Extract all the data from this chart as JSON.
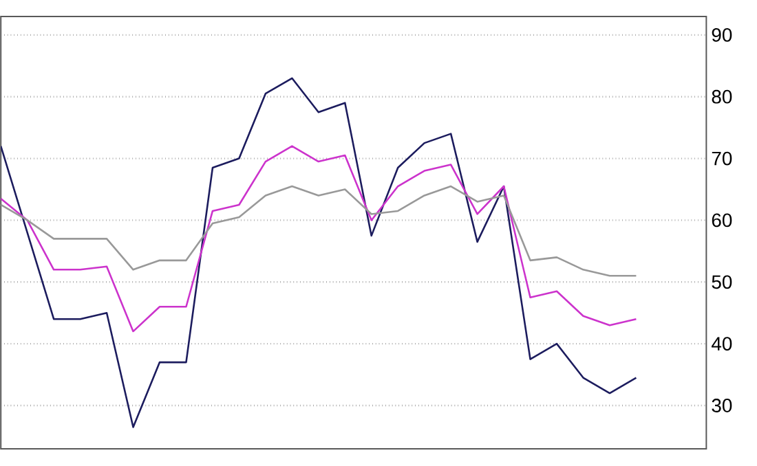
{
  "chart_data": {
    "type": "line",
    "categories": [
      null,
      null,
      null,
      null,
      null,
      null,
      null,
      null,
      null,
      null,
      null,
      null,
      null,
      null,
      null,
      null,
      null,
      null,
      null,
      null,
      null,
      null,
      null,
      null,
      null
    ],
    "series": [
      {
        "color": "#1c1c5e",
        "values": [
          72,
          58,
          44,
          44,
          45,
          26.5,
          37,
          37,
          68.5,
          70,
          80.5,
          83,
          77.5,
          79,
          57.5,
          68.5,
          72.5,
          74,
          56.5,
          65.5,
          37.5,
          40,
          34.5,
          32,
          34.5
        ]
      },
      {
        "color": "#cc33cc",
        "values": [
          63.5,
          60,
          52,
          52,
          52.5,
          42,
          46,
          46,
          61.5,
          62.5,
          69.5,
          72,
          69.5,
          70.5,
          60,
          65.5,
          68,
          69,
          61,
          65.5,
          47.5,
          48.5,
          44.5,
          43,
          44
        ]
      },
      {
        "color": "#999999",
        "values": [
          62.5,
          60,
          57,
          57,
          57,
          52,
          53.5,
          53.5,
          59.5,
          60.5,
          64,
          65.5,
          64,
          65,
          61,
          61.5,
          64,
          65.5,
          63,
          64,
          53.5,
          54,
          52,
          51,
          51
        ]
      }
    ],
    "ylim": [
      23,
      93
    ],
    "yticks": [
      30,
      40,
      50,
      60,
      70,
      80,
      90
    ],
    "grid": "y",
    "marker": "none",
    "line_style": "solid"
  }
}
